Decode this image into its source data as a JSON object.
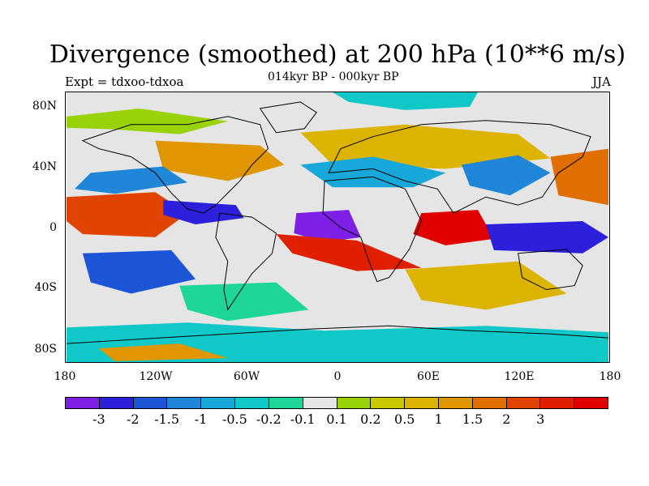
{
  "title": "Divergence (smoothed) at 200 hPa (10**6 m/s)",
  "expt_label": "Expt = tdxoo-tdxoa",
  "subtitle": "014kyr BP - 000kyr BP",
  "season": "JJA",
  "map": {
    "lat_ticks": [
      "80N",
      "40N",
      "0",
      "40S",
      "80S"
    ],
    "lon_ticks": [
      "180",
      "120W",
      "60W",
      "0",
      "60E",
      "120E",
      "180"
    ],
    "background_color": "#e5e5e5",
    "coastline_color": "#000000"
  },
  "colorbar": {
    "colors": [
      "#7e1fe6",
      "#2c20dc",
      "#1c55d6",
      "#1f86d8",
      "#17a7d8",
      "#11c8c8",
      "#1ed59a",
      "#e6e6e6",
      "#9ad20a",
      "#c8c800",
      "#dcb400",
      "#e09600",
      "#e06e00",
      "#e04400",
      "#e01e00",
      "#e00000"
    ],
    "labels": [
      "-3",
      "-2",
      "-1.5",
      "-1",
      "-0.5",
      "-0.2",
      "-0.1",
      "0.1",
      "0.2",
      "0.5",
      "1",
      "1.5",
      "2",
      "3"
    ]
  }
}
